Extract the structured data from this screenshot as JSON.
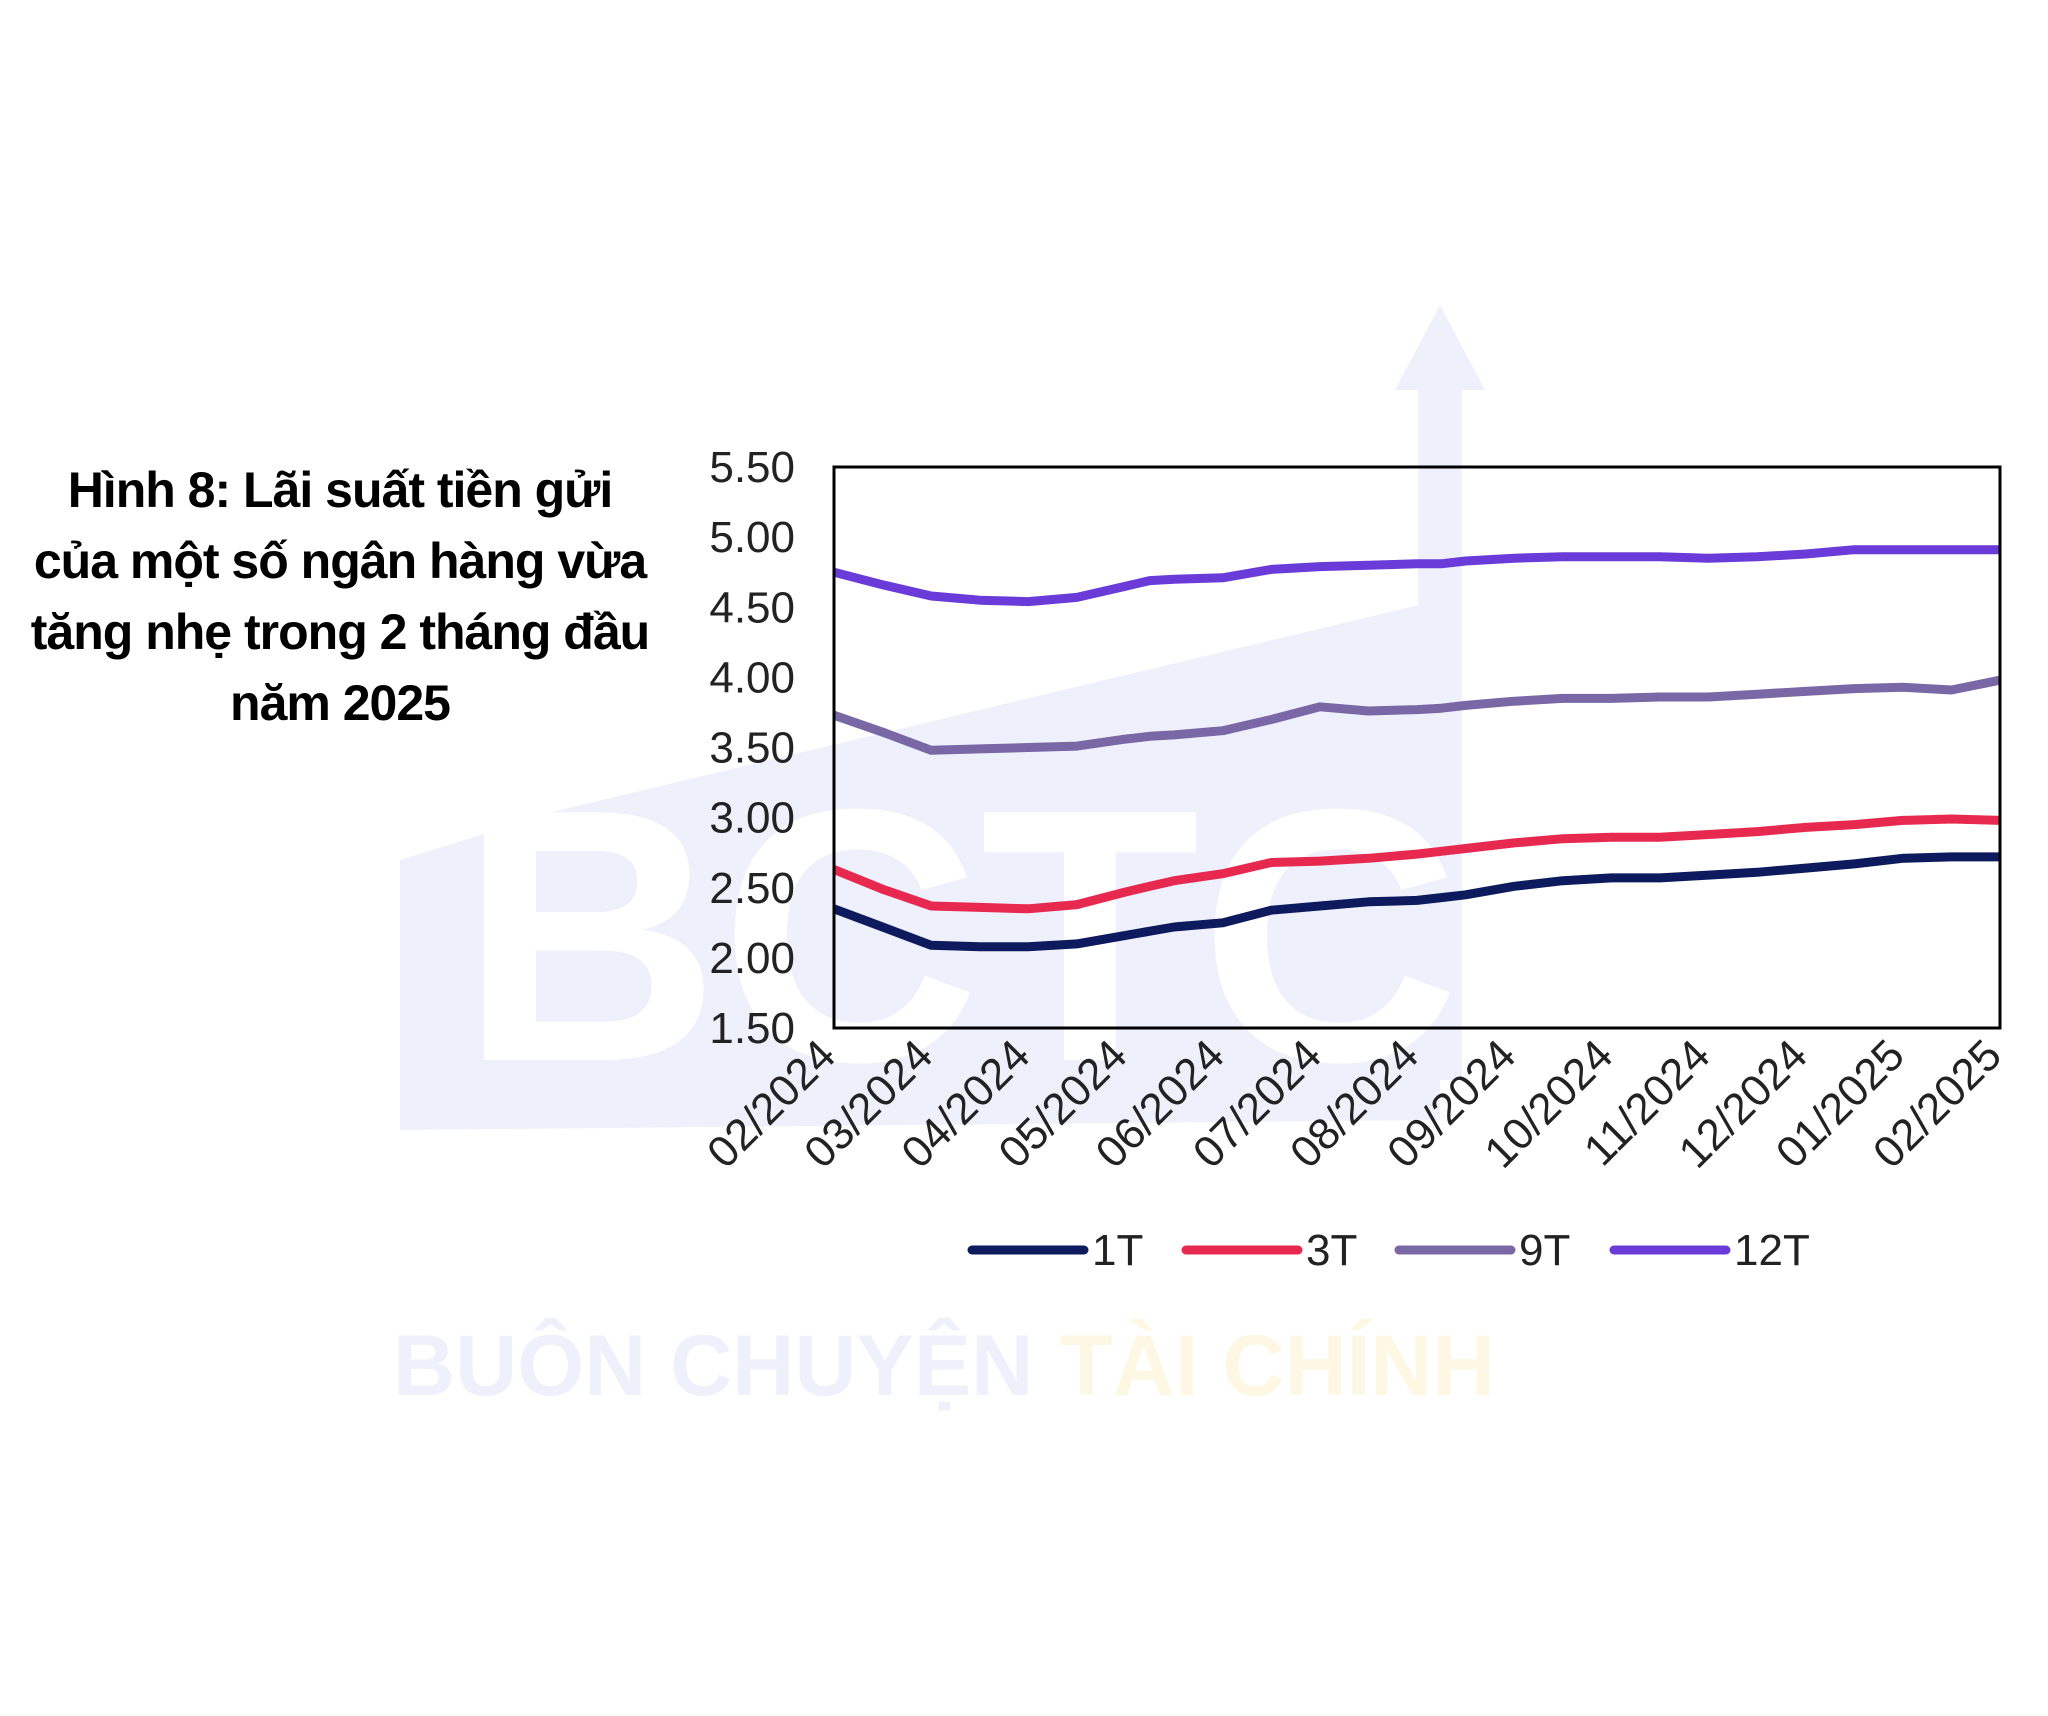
{
  "watermark": {
    "logo_letters": "BCTC",
    "brand_left": "BUÔN CHUYỆN",
    "brand_right": "TÀI CHÍNH",
    "colors": {
      "blue": "#eef1fb",
      "yellow": "#fdf7e4"
    }
  },
  "chart_data": {
    "type": "line",
    "title": "Hình 8: Lãi suất tiền gửi của một số ngân hàng vừa tăng nhẹ trong 2 tháng đầu năm 2025",
    "xlabel": "",
    "ylabel": "",
    "categories": [
      "02/2024",
      "03/2024",
      "04/2024",
      "05/2024",
      "06/2024",
      "07/2024",
      "08/2024",
      "09/2024",
      "10/2024",
      "11/2024",
      "12/2024",
      "01/2025",
      "02/2025"
    ],
    "x": [
      0,
      0.5,
      1,
      1.5,
      2,
      2.5,
      3,
      3.25,
      3.5,
      4,
      4.5,
      5,
      5.5,
      6,
      6.25,
      6.5,
      7,
      7.5,
      8,
      8.5,
      9,
      9.5,
      10,
      10.5,
      11,
      11.5,
      12
    ],
    "ylim": [
      1.5,
      5.5
    ],
    "yticks": [
      "1.50",
      "2.00",
      "2.50",
      "3.00",
      "3.50",
      "4.00",
      "4.50",
      "5.00",
      "5.50"
    ],
    "grid": false,
    "legend_position": "bottom",
    "series": [
      {
        "name": "1T",
        "color": "#0d1b5e",
        "values": [
          2.35,
          2.22,
          2.09,
          2.08,
          2.08,
          2.1,
          2.16,
          2.19,
          2.22,
          2.25,
          2.34,
          2.37,
          2.4,
          2.41,
          2.43,
          2.45,
          2.51,
          2.55,
          2.57,
          2.57,
          2.59,
          2.61,
          2.64,
          2.67,
          2.71,
          2.72,
          2.72
        ]
      },
      {
        "name": "3T",
        "color": "#e8294f",
        "values": [
          2.63,
          2.49,
          2.37,
          2.36,
          2.35,
          2.38,
          2.47,
          2.51,
          2.55,
          2.6,
          2.68,
          2.69,
          2.71,
          2.74,
          2.76,
          2.78,
          2.82,
          2.85,
          2.86,
          2.86,
          2.88,
          2.9,
          2.93,
          2.95,
          2.98,
          2.99,
          2.98
        ]
      },
      {
        "name": "9T",
        "color": "#7a68a6",
        "values": [
          3.73,
          3.61,
          3.48,
          3.49,
          3.5,
          3.51,
          3.56,
          3.58,
          3.59,
          3.62,
          3.7,
          3.79,
          3.76,
          3.77,
          3.78,
          3.8,
          3.83,
          3.85,
          3.85,
          3.86,
          3.86,
          3.88,
          3.9,
          3.92,
          3.93,
          3.91,
          3.98
        ]
      },
      {
        "name": "12T",
        "color": "#6a3bd8",
        "values": [
          4.75,
          4.66,
          4.58,
          4.55,
          4.54,
          4.57,
          4.65,
          4.69,
          4.7,
          4.71,
          4.77,
          4.79,
          4.8,
          4.81,
          4.81,
          4.83,
          4.85,
          4.86,
          4.86,
          4.86,
          4.85,
          4.86,
          4.88,
          4.91,
          4.91,
          4.91,
          4.91
        ]
      }
    ]
  }
}
